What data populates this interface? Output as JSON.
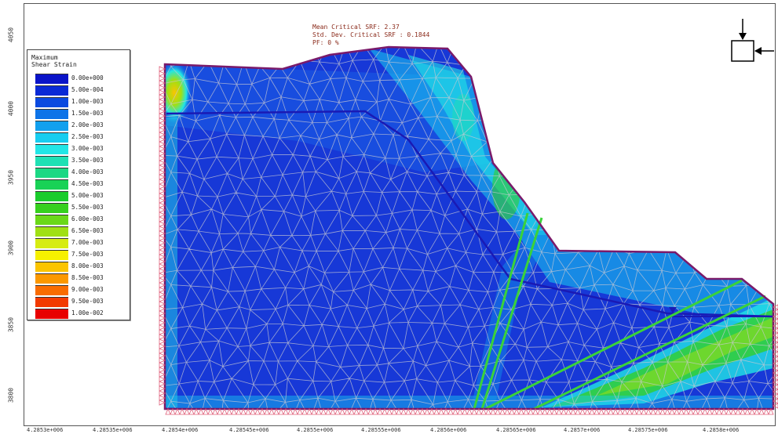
{
  "legend": {
    "title_line1": "Maximum",
    "title_line2": "Shear Strain",
    "items": [
      {
        "label": "0.00e+000",
        "color": "#0a14c8"
      },
      {
        "label": "5.00e-004",
        "color": "#0a2ad6"
      },
      {
        "label": "1.00e-003",
        "color": "#0b4ae0"
      },
      {
        "label": "1.50e-003",
        "color": "#0d74e8"
      },
      {
        "label": "2.00e-003",
        "color": "#12a0ee"
      },
      {
        "label": "2.50e-003",
        "color": "#18cdf0"
      },
      {
        "label": "3.00e-003",
        "color": "#22e6e6"
      },
      {
        "label": "3.50e-003",
        "color": "#20e0b4"
      },
      {
        "label": "4.00e-003",
        "color": "#1cd884"
      },
      {
        "label": "4.50e-003",
        "color": "#18d256"
      },
      {
        "label": "5.00e-003",
        "color": "#1acc2c"
      },
      {
        "label": "5.50e-003",
        "color": "#36d01e"
      },
      {
        "label": "6.00e-003",
        "color": "#6ad818"
      },
      {
        "label": "6.50e-003",
        "color": "#a0e014"
      },
      {
        "label": "7.00e-003",
        "color": "#d6ec12"
      },
      {
        "label": "7.50e-003",
        "color": "#f6f000"
      },
      {
        "label": "8.00e-003",
        "color": "#fbc400"
      },
      {
        "label": "8.50e-003",
        "color": "#fb9800"
      },
      {
        "label": "9.00e-003",
        "color": "#f86c00"
      },
      {
        "label": "9.50e-003",
        "color": "#f23a00"
      },
      {
        "label": "1.00e-002",
        "color": "#e80000"
      }
    ]
  },
  "summary": {
    "line1": "Mean Critical SRF: 2.37",
    "line2": "Std. Dev. Critical SRF : 0.1844",
    "line3": "PF: 0 %"
  },
  "y_ticks": [
    "4050",
    "4000",
    "3950",
    "3900",
    "3850",
    "3800"
  ],
  "x_ticks": [
    "4.2853e+006",
    "4.28535e+006",
    "4.2854e+006",
    "4.28545e+006",
    "4.2855e+006",
    "4.28555e+006",
    "4.2856e+006",
    "4.28565e+006",
    "4.2857e+006",
    "4.28575e+006",
    "4.2858e+006"
  ],
  "colors": {
    "boundary": "#7a1a6a",
    "material_line": "#1a1ab4",
    "joint_line": "#3ad23a",
    "mesh_line": "#c8c8d2",
    "support": "#e0607a",
    "water_table_marker": "#1a1ab4"
  },
  "icons": {
    "load": "load-arrows-icon",
    "water": "water-table-icon"
  }
}
